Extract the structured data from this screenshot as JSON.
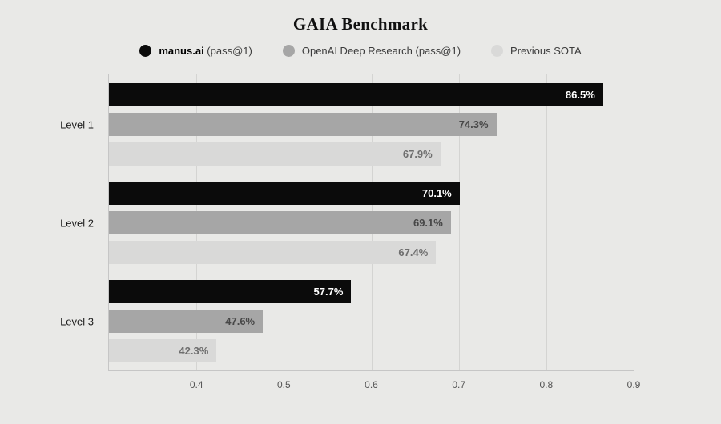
{
  "chart_data": {
    "type": "bar",
    "orientation": "horizontal",
    "title": "GAIA Benchmark",
    "categories": [
      "Level 1",
      "Level 2",
      "Level 3"
    ],
    "series": [
      {
        "name": "manus.ai (pass@1)",
        "color": "#0b0b0b",
        "label_color": "#ffffff",
        "values": [
          0.865,
          0.701,
          0.577
        ],
        "labels": [
          "86.5%",
          "70.1%",
          "57.7%"
        ]
      },
      {
        "name": "OpenAI Deep Research (pass@1)",
        "color": "#a6a6a6",
        "label_color": "#474747",
        "values": [
          0.743,
          0.691,
          0.476
        ],
        "labels": [
          "74.3%",
          "69.1%",
          "47.6%"
        ]
      },
      {
        "name": "Previous SOTA",
        "color": "#d9d9d8",
        "label_color": "#6e6e6e",
        "values": [
          0.679,
          0.674,
          0.423
        ],
        "labels": [
          "67.9%",
          "67.4%",
          "42.3%"
        ]
      }
    ],
    "xlim": [
      0.3,
      0.9
    ],
    "x_ticks": [
      0.4,
      0.5,
      0.6,
      0.7,
      0.8,
      0.9
    ],
    "x_tick_labels": [
      "0.4",
      "0.5",
      "0.6",
      "0.7",
      "0.8",
      "0.9"
    ],
    "grid": true,
    "legend_position": "top",
    "background_color": "#e9e9e7"
  },
  "legend": {
    "items": [
      {
        "strong": "manus.ai",
        "rest": " (pass@1)",
        "color": "#0b0b0b"
      },
      {
        "strong": "",
        "rest": "OpenAI Deep Research (pass@1)",
        "color": "#a6a6a6"
      },
      {
        "strong": "",
        "rest": "Previous SOTA",
        "color": "#d9d9d8"
      }
    ]
  }
}
